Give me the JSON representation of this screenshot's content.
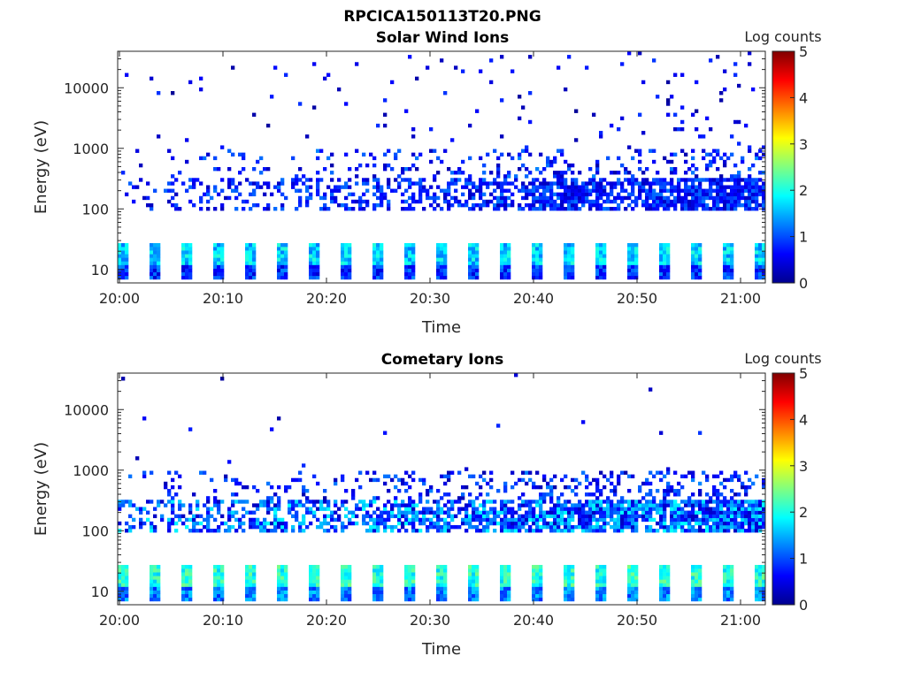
{
  "figure": {
    "title": "RPCICA150113T20.PNG"
  },
  "chart_data": [
    {
      "type": "heatmap",
      "title": "Solar Wind Ions",
      "xlabel": "Time",
      "ylabel": "Energy (eV)",
      "x_ticks": [
        "20:00",
        "20:10",
        "20:20",
        "20:30",
        "20:40",
        "20:50",
        "21:00"
      ],
      "y_ticks": [
        "10",
        "100",
        "1000",
        "10000"
      ],
      "y_scale": "log",
      "ylim": [
        6,
        40000
      ],
      "colorbar": {
        "label": "Log counts",
        "ticks": [
          "0",
          "1",
          "2",
          "3",
          "4",
          "5"
        ],
        "range": [
          0,
          5
        ]
      }
    },
    {
      "type": "heatmap",
      "title": "Cometary Ions",
      "xlabel": "Time",
      "ylabel": "Energy (eV)",
      "x_ticks": [
        "20:00",
        "20:10",
        "20:20",
        "20:30",
        "20:40",
        "20:50",
        "21:00"
      ],
      "y_ticks": [
        "10",
        "100",
        "1000",
        "10000"
      ],
      "y_scale": "log",
      "ylim": [
        6,
        40000
      ],
      "colorbar": {
        "label": "Log counts",
        "ticks": [
          "0",
          "1",
          "2",
          "3",
          "4",
          "5"
        ],
        "range": [
          0,
          5
        ]
      }
    }
  ]
}
